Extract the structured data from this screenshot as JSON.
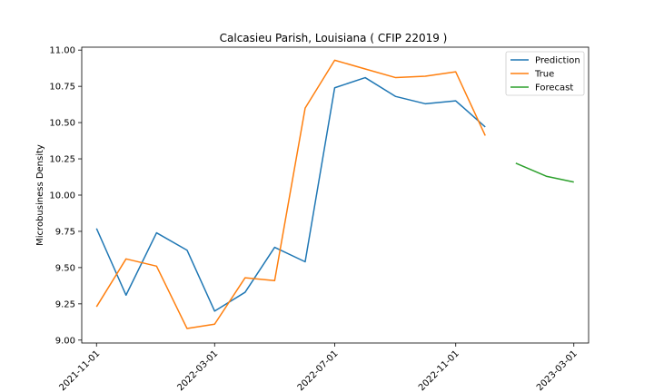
{
  "chart_data": {
    "type": "line",
    "title": "Calcasieu Parish, Louisiana ( CFIP 22019 )",
    "xlabel": "",
    "ylabel": "Microbusiness Density",
    "xlim": [
      "2021-10-17",
      "2023-03-16"
    ],
    "ylim": [
      8.98,
      11.02
    ],
    "x_ticks": [
      "2021-11-01",
      "2022-03-01",
      "2022-07-01",
      "2022-11-01",
      "2023-03-01"
    ],
    "y_ticks": [
      "9.00",
      "9.25",
      "9.50",
      "9.75",
      "10.00",
      "10.25",
      "10.50",
      "10.75",
      "11.00"
    ],
    "legend": "top-right",
    "grid": false,
    "series": [
      {
        "name": "Prediction",
        "color": "#1f77b4",
        "x": [
          "2021-11-01",
          "2021-12-01",
          "2022-01-01",
          "2022-02-01",
          "2022-03-01",
          "2022-04-01",
          "2022-05-01",
          "2022-06-01",
          "2022-07-01",
          "2022-08-01",
          "2022-09-01",
          "2022-10-01",
          "2022-11-01",
          "2022-12-01"
        ],
        "y": [
          9.77,
          9.31,
          9.74,
          9.62,
          9.2,
          9.33,
          9.64,
          9.54,
          10.74,
          10.81,
          10.68,
          10.63,
          10.65,
          10.47
        ]
      },
      {
        "name": "True",
        "color": "#ff7f0e",
        "x": [
          "2021-11-01",
          "2021-12-01",
          "2022-01-01",
          "2022-02-01",
          "2022-03-01",
          "2022-04-01",
          "2022-05-01",
          "2022-06-01",
          "2022-07-01",
          "2022-08-01",
          "2022-09-01",
          "2022-10-01",
          "2022-11-01",
          "2022-12-01"
        ],
        "y": [
          9.23,
          9.56,
          9.51,
          9.08,
          9.11,
          9.43,
          9.41,
          10.6,
          10.93,
          10.87,
          10.81,
          10.82,
          10.85,
          10.41
        ]
      },
      {
        "name": "Forecast",
        "color": "#2ca02c",
        "x": [
          "2023-01-01",
          "2023-02-01",
          "2023-03-01"
        ],
        "y": [
          10.22,
          10.13,
          10.09
        ]
      }
    ]
  }
}
